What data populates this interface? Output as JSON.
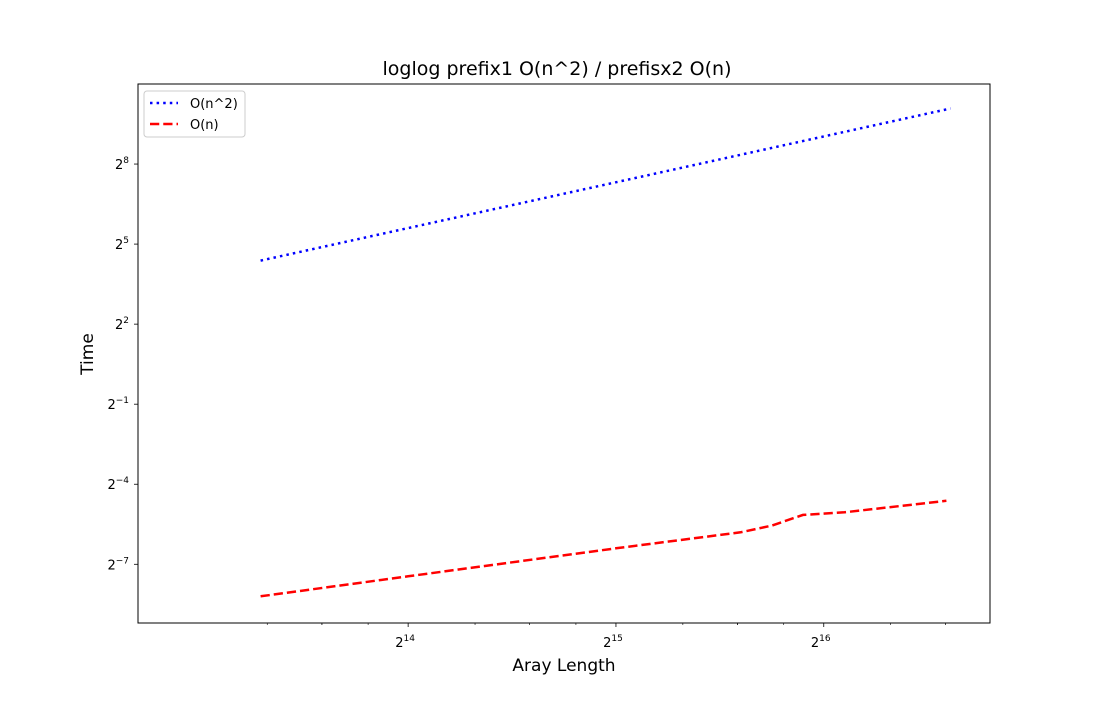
{
  "chart_data": {
    "type": "line",
    "title": "loglog prefix1 O(n^2) / prefisx2 O(n)",
    "xlabel": "Aray Length",
    "ylabel": "Time",
    "xscale": "log2",
    "yscale": "log2",
    "xlim_log2": [
      12.7,
      16.8
    ],
    "ylim_log2": [
      -9.2,
      11.0
    ],
    "x_ticks": [
      {
        "base": "2",
        "exp": "14",
        "log2": 14
      },
      {
        "base": "2",
        "exp": "15",
        "log2": 15
      },
      {
        "base": "2",
        "exp": "16",
        "log2": 16
      }
    ],
    "y_ticks": [
      {
        "base": "2",
        "exp": "8",
        "log2": 8
      },
      {
        "base": "2",
        "exp": "5",
        "log2": 5
      },
      {
        "base": "2",
        "exp": "2",
        "log2": 2
      },
      {
        "base": "2",
        "exp": "−1",
        "log2": -1
      },
      {
        "base": "2",
        "exp": "−4",
        "log2": -4
      },
      {
        "base": "2",
        "exp": "−7",
        "log2": -7
      }
    ],
    "legend": {
      "placement": "upper-left"
    },
    "series": [
      {
        "name": "O(n^2)",
        "color": "#0000ff",
        "style": "dotted",
        "points_log2": [
          [
            13.29,
            4.38
          ],
          [
            16.61,
            10.08
          ]
        ]
      },
      {
        "name": "O(n)",
        "color": "#ff0000",
        "style": "dashed",
        "points_log2": [
          [
            13.29,
            -8.2
          ],
          [
            14.0,
            -7.45
          ],
          [
            15.0,
            -6.4
          ],
          [
            15.6,
            -5.8
          ],
          [
            15.75,
            -5.55
          ],
          [
            15.9,
            -5.15
          ],
          [
            16.1,
            -5.05
          ],
          [
            16.59,
            -4.62
          ]
        ]
      }
    ]
  }
}
